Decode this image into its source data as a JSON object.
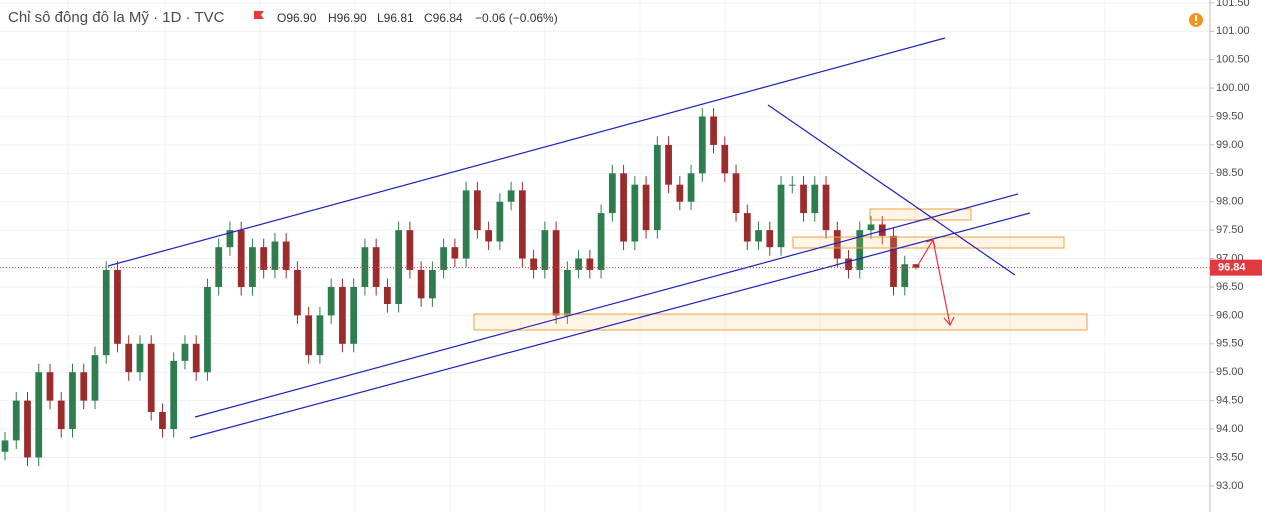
{
  "chart_data": {
    "type": "candlestick",
    "title": "Chỉ sô đông đô la Mỹ · 1D · TVC",
    "ohlc_legend": [
      "O96.90",
      "H96.90",
      "L96.81",
      "C96.84",
      "−0.06 (−0.06%)"
    ],
    "up_color": "#2e7d4f",
    "down_color": "#9c2b2b",
    "open": [
      93.6,
      93.8,
      94.5,
      93.5,
      95.0,
      94.5,
      94.0,
      95.0,
      94.5,
      95.3,
      96.8,
      95.5,
      95.0,
      95.5,
      94.3,
      94.0,
      95.2,
      95.5,
      95.0,
      96.5,
      97.2,
      97.5,
      96.5,
      97.2,
      96.8,
      97.3,
      96.8,
      96.0,
      95.3,
      96.0,
      96.5,
      95.5,
      96.5,
      97.2,
      96.5,
      96.2,
      97.5,
      96.8,
      96.3,
      96.8,
      97.2,
      97.0,
      98.2,
      97.5,
      97.3,
      98.0,
      98.2,
      97.0,
      96.8,
      97.5,
      96.0,
      96.8,
      97.0,
      96.8,
      97.8,
      98.5,
      97.3,
      98.3,
      97.5,
      99.0,
      98.3,
      98.0,
      98.5,
      99.5,
      99.0,
      98.5,
      97.8,
      97.3,
      97.5,
      97.2,
      98.3,
      98.3,
      97.8,
      98.3,
      97.5,
      97.0,
      96.8,
      97.5,
      97.6,
      97.4,
      96.5,
      96.9
    ],
    "high": [
      93.95,
      94.65,
      94.65,
      95.15,
      95.15,
      94.65,
      95.15,
      95.15,
      95.45,
      96.95,
      96.95,
      95.65,
      95.65,
      95.65,
      94.45,
      95.35,
      95.65,
      95.65,
      96.65,
      97.35,
      97.65,
      97.65,
      97.35,
      97.35,
      97.45,
      97.45,
      96.95,
      96.15,
      96.15,
      96.65,
      96.65,
      96.65,
      97.35,
      97.35,
      96.65,
      97.65,
      97.65,
      96.95,
      96.95,
      97.35,
      97.35,
      98.35,
      98.35,
      97.65,
      98.15,
      98.35,
      98.35,
      97.15,
      97.65,
      97.65,
      96.95,
      97.15,
      97.15,
      97.95,
      98.65,
      98.65,
      98.45,
      98.45,
      99.15,
      99.15,
      98.45,
      98.65,
      99.65,
      99.65,
      99.15,
      98.65,
      97.95,
      97.65,
      97.65,
      98.45,
      98.45,
      98.45,
      98.45,
      98.45,
      97.65,
      97.15,
      97.65,
      97.75,
      97.75,
      97.55,
      97.05,
      96.9
    ],
    "low": [
      93.45,
      93.65,
      93.35,
      93.35,
      94.35,
      93.85,
      93.85,
      94.35,
      94.35,
      95.15,
      95.35,
      94.85,
      94.85,
      94.15,
      93.85,
      93.85,
      95.05,
      94.85,
      94.85,
      96.35,
      97.05,
      96.35,
      96.35,
      96.65,
      96.65,
      96.65,
      95.85,
      95.15,
      95.15,
      95.85,
      95.35,
      95.35,
      96.35,
      96.35,
      96.05,
      96.05,
      96.65,
      96.15,
      96.15,
      96.65,
      96.85,
      96.85,
      97.35,
      97.15,
      97.15,
      97.85,
      96.85,
      96.65,
      96.65,
      95.85,
      95.85,
      96.65,
      96.65,
      96.65,
      97.65,
      97.15,
      97.15,
      97.35,
      97.35,
      98.15,
      97.85,
      97.85,
      98.35,
      98.85,
      98.35,
      97.65,
      97.15,
      97.15,
      97.05,
      97.05,
      98.15,
      97.65,
      97.65,
      97.35,
      96.85,
      96.65,
      96.65,
      97.35,
      97.25,
      96.35,
      96.35,
      96.81
    ],
    "close": [
      93.8,
      94.5,
      93.5,
      95.0,
      94.5,
      94.0,
      95.0,
      94.5,
      95.3,
      96.8,
      95.5,
      95.0,
      95.5,
      94.3,
      94.0,
      95.2,
      95.5,
      95.0,
      96.5,
      97.2,
      97.5,
      96.5,
      97.2,
      96.8,
      97.3,
      96.8,
      96.0,
      95.3,
      96.0,
      96.5,
      95.5,
      96.5,
      97.2,
      96.5,
      96.2,
      97.5,
      96.8,
      96.3,
      96.8,
      97.2,
      97.0,
      98.2,
      97.5,
      97.3,
      98.0,
      98.2,
      97.0,
      96.8,
      97.5,
      96.0,
      96.8,
      97.0,
      96.8,
      97.8,
      98.5,
      97.3,
      98.3,
      97.5,
      99.0,
      98.3,
      98.0,
      98.5,
      99.5,
      99.0,
      98.5,
      97.8,
      97.3,
      97.5,
      97.2,
      98.3,
      98.3,
      97.8,
      98.3,
      97.5,
      97.0,
      96.8,
      97.5,
      97.6,
      97.4,
      96.5,
      96.9,
      96.84
    ],
    "ylim": [
      92.54,
      101.55
    ],
    "yticks": [
      {
        "value": 93,
        "label": "93.00"
      },
      {
        "value": 93.5,
        "label": "93.50"
      },
      {
        "value": 94,
        "label": "94.00"
      },
      {
        "value": 94.5,
        "label": "94.50"
      },
      {
        "value": 95,
        "label": "95.00"
      },
      {
        "value": 95.5,
        "label": "95.50"
      },
      {
        "value": 96,
        "label": "96.00"
      },
      {
        "value": 96.5,
        "label": "96.50"
      },
      {
        "value": 97,
        "label": "97.00"
      },
      {
        "value": 97.5,
        "label": "97.50"
      },
      {
        "value": 98,
        "label": "98.00"
      },
      {
        "value": 98.5,
        "label": "98.50"
      },
      {
        "value": 99,
        "label": "99.00"
      },
      {
        "value": 99.5,
        "label": "99.50"
      },
      {
        "value": 100,
        "label": "100.00"
      },
      {
        "value": 100.5,
        "label": "100.50"
      },
      {
        "value": 101,
        "label": "101.00"
      },
      {
        "value": 101.5,
        "label": "101.50"
      }
    ],
    "grid": true,
    "last_price": {
      "value": 96.84,
      "label": "96.84"
    },
    "last_price_color": "#e0393e"
  }
}
